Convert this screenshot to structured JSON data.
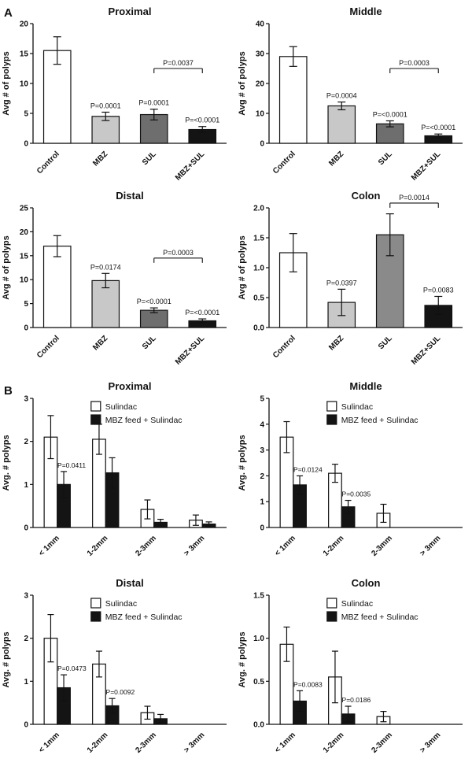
{
  "figure": {
    "panel_a_label": "A",
    "panel_b_label": "B"
  },
  "chart_data": [
    {
      "panel": "A",
      "type": "bar",
      "title": "Proximal",
      "ylabel": "Avg # of polyps",
      "ylim": [
        0,
        20
      ],
      "yticks": [
        "0",
        "5",
        "10",
        "15",
        "20"
      ],
      "categories": [
        "Control",
        "MBZ",
        "SUL",
        "MBZ+SUL"
      ],
      "values": [
        15.5,
        4.5,
        4.8,
        2.3
      ],
      "errors": [
        2.3,
        0.7,
        0.9,
        0.5
      ],
      "bar_colors": [
        "#ffffff",
        "#c8c8c8",
        "#6e6e6e",
        "#141414"
      ],
      "p_labels": [
        null,
        "P=0.0001",
        "P=0.0001",
        "P=<0.0001"
      ],
      "bracket": {
        "from": 2,
        "to": 3,
        "y": 12.5,
        "label": "P=0.0037"
      }
    },
    {
      "panel": "A",
      "type": "bar",
      "title": "Middle",
      "ylabel": "Avg # of polyps",
      "ylim": [
        0,
        40
      ],
      "yticks": [
        "0",
        "10",
        "20",
        "30",
        "40"
      ],
      "categories": [
        "Control",
        "MBZ",
        "SUL",
        "MBZ+SUL"
      ],
      "values": [
        29,
        12.5,
        6.5,
        2.5
      ],
      "errors": [
        3.3,
        1.3,
        1.0,
        0.6
      ],
      "bar_colors": [
        "#ffffff",
        "#c8c8c8",
        "#6e6e6e",
        "#141414"
      ],
      "p_labels": [
        null,
        "P=0.0004",
        "P=<0.0001",
        "P=<0.0001"
      ],
      "bracket": {
        "from": 2,
        "to": 3,
        "y": 25,
        "label": "P=0.0003"
      }
    },
    {
      "panel": "A",
      "type": "bar",
      "title": "Distal",
      "ylabel": "Avg # of polyps",
      "ylim": [
        0,
        25
      ],
      "yticks": [
        "0",
        "5",
        "10",
        "15",
        "20",
        "25"
      ],
      "categories": [
        "Control",
        "MBZ",
        "SUL",
        "MBZ+SUL"
      ],
      "values": [
        17,
        9.8,
        3.6,
        1.4
      ],
      "errors": [
        2.2,
        1.5,
        0.5,
        0.4
      ],
      "bar_colors": [
        "#ffffff",
        "#c8c8c8",
        "#6e6e6e",
        "#141414"
      ],
      "p_labels": [
        null,
        "P=0.0174",
        "P=<0.0001",
        "P=<0.0001"
      ],
      "bracket": {
        "from": 2,
        "to": 3,
        "y": 14.5,
        "label": "P=0.0003"
      }
    },
    {
      "panel": "A",
      "type": "bar",
      "title": "Colon",
      "ylabel": "Avg # of polyps",
      "ylim": [
        0,
        2
      ],
      "yticks": [
        "0.0",
        "0.5",
        "1.0",
        "1.5",
        "2.0"
      ],
      "categories": [
        "Control",
        "MBZ",
        "SUL",
        "MBZ+SUL"
      ],
      "values": [
        1.25,
        0.42,
        1.55,
        0.37
      ],
      "errors": [
        0.32,
        0.22,
        0.35,
        0.15
      ],
      "bar_colors": [
        "#ffffff",
        "#c8c8c8",
        "#8a8a8a",
        "#141414"
      ],
      "p_labels": [
        null,
        "P=0.0397",
        null,
        "P=0.0083"
      ],
      "bracket": {
        "from": 2,
        "to": 3,
        "y": 2.08,
        "label": "P=0.0014"
      }
    },
    {
      "panel": "B",
      "type": "grouped-bar",
      "title": "Proximal",
      "ylabel": "Avg. # polyps",
      "ylim": [
        0,
        3
      ],
      "yticks": [
        "0",
        "1",
        "2",
        "3"
      ],
      "categories": [
        "< 1mm",
        "1-2mm",
        "2-3mm",
        "> 3mm"
      ],
      "series": [
        {
          "name": "Sulindac",
          "color": "#ffffff",
          "values": [
            2.1,
            2.05,
            0.42,
            0.17
          ],
          "errors": [
            0.5,
            0.35,
            0.22,
            0.12
          ]
        },
        {
          "name": "MBZ feed + Sulindac",
          "color": "#141414",
          "values": [
            1.0,
            1.27,
            0.12,
            0.08
          ],
          "errors": [
            0.3,
            0.35,
            0.07,
            0.05
          ]
        }
      ],
      "p_annotations": [
        {
          "series": 1,
          "category": 0,
          "label": "P=0.0411"
        }
      ]
    },
    {
      "panel": "B",
      "type": "grouped-bar",
      "title": "Middle",
      "ylabel": "Avg. # polyps",
      "ylim": [
        0,
        5
      ],
      "yticks": [
        "0",
        "1",
        "2",
        "3",
        "4",
        "5"
      ],
      "categories": [
        "< 1mm",
        "1-2mm",
        "2-3mm",
        "> 3mm"
      ],
      "series": [
        {
          "name": "Sulindac",
          "color": "#ffffff",
          "values": [
            3.5,
            2.1,
            0.55,
            0
          ],
          "errors": [
            0.6,
            0.35,
            0.35,
            0
          ]
        },
        {
          "name": "MBZ feed + Sulindac",
          "color": "#141414",
          "values": [
            1.65,
            0.8,
            0,
            0
          ],
          "errors": [
            0.35,
            0.25,
            0,
            0
          ]
        }
      ],
      "p_annotations": [
        {
          "series": 1,
          "category": 0,
          "label": "P=0.0124"
        },
        {
          "series": 1,
          "category": 1,
          "label": "P=0.0035"
        }
      ]
    },
    {
      "panel": "B",
      "type": "grouped-bar",
      "title": "Distal",
      "ylabel": "Avg. # polyps",
      "ylim": [
        0,
        3
      ],
      "yticks": [
        "0",
        "1",
        "2",
        "3"
      ],
      "categories": [
        "< 1mm",
        "1-2mm",
        "2-3mm",
        "> 3mm"
      ],
      "series": [
        {
          "name": "Sulindac",
          "color": "#ffffff",
          "values": [
            2.0,
            1.4,
            0.27,
            0
          ],
          "errors": [
            0.55,
            0.3,
            0.15,
            0
          ]
        },
        {
          "name": "MBZ feed + Sulindac",
          "color": "#141414",
          "values": [
            0.85,
            0.43,
            0.13,
            0
          ],
          "errors": [
            0.3,
            0.17,
            0.1,
            0
          ]
        }
      ],
      "p_annotations": [
        {
          "series": 1,
          "category": 0,
          "label": "P=0.0473"
        },
        {
          "series": 1,
          "category": 1,
          "label": "P=0.0092"
        }
      ]
    },
    {
      "panel": "B",
      "type": "grouped-bar",
      "title": "Colon",
      "ylabel": "Avg. # polyps",
      "ylim": [
        0,
        1.5
      ],
      "yticks": [
        "0.0",
        "0.5",
        "1.0",
        "1.5"
      ],
      "categories": [
        "< 1mm",
        "1-2mm",
        "2-3mm",
        "> 3mm"
      ],
      "series": [
        {
          "name": "Sulindac",
          "color": "#ffffff",
          "values": [
            0.93,
            0.55,
            0.09,
            0
          ],
          "errors": [
            0.2,
            0.3,
            0.06,
            0
          ]
        },
        {
          "name": "MBZ feed + Sulindac",
          "color": "#141414",
          "values": [
            0.27,
            0.12,
            0,
            0
          ],
          "errors": [
            0.12,
            0.09,
            0,
            0
          ]
        }
      ],
      "p_annotations": [
        {
          "series": 1,
          "category": 0,
          "label": "P=0.0083"
        },
        {
          "series": 1,
          "category": 1,
          "label": "P=0.0186"
        }
      ]
    }
  ]
}
